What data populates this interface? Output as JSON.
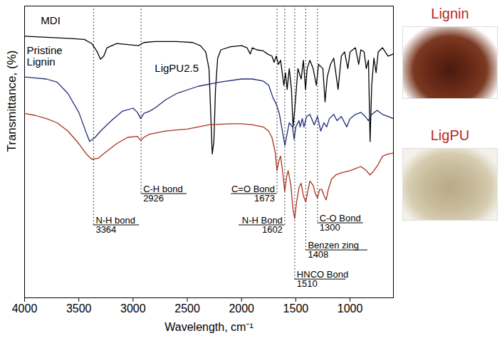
{
  "chart_data": {
    "type": "line",
    "y_label": "Transmittance, (%)",
    "x_label": "Wavelength, cm⁻¹",
    "xlim": [
      4000,
      600
    ],
    "xticks": [
      4000,
      3500,
      3000,
      2500,
      2000,
      1500,
      1000
    ],
    "ylim": [
      -30,
      110
    ],
    "tick_labels": "x",
    "grid": false,
    "series": [
      {
        "name": "MDI",
        "color": "#000000",
        "x": [
          4000,
          3800,
          3600,
          3450,
          3380,
          3330,
          3300,
          3270,
          3240,
          3150,
          3050,
          2950,
          2900,
          2800,
          2600,
          2450,
          2380,
          2330,
          2300,
          2285,
          2270,
          2255,
          2240,
          2220,
          2190,
          2100,
          2000,
          1950,
          1920,
          1900,
          1860,
          1800,
          1760,
          1720,
          1700,
          1680,
          1660,
          1640,
          1610,
          1595,
          1580,
          1560,
          1540,
          1525,
          1510,
          1480,
          1450,
          1430,
          1410,
          1395,
          1370,
          1340,
          1310,
          1290,
          1250,
          1230,
          1210,
          1180,
          1150,
          1110,
          1080,
          1050,
          1020,
          1000,
          950,
          920,
          900,
          870,
          850,
          830,
          815,
          800,
          780,
          760,
          740,
          700,
          650,
          600
        ],
        "values": [
          95.5,
          95,
          94.5,
          94,
          92,
          88,
          84.5,
          86,
          90,
          92,
          91.5,
          91,
          92.5,
          93,
          93,
          92.5,
          91,
          88,
          80,
          60,
          39,
          45,
          70,
          85,
          89,
          90.5,
          91,
          90,
          87,
          90,
          89,
          88.5,
          87,
          86,
          83,
          86,
          82,
          84,
          72,
          78,
          70,
          80,
          70,
          52,
          60,
          80,
          75,
          84,
          70,
          80,
          84,
          80,
          72,
          82,
          80,
          64,
          76,
          82,
          85,
          70,
          86,
          88,
          80,
          88,
          90,
          82,
          89,
          88,
          80,
          84,
          45,
          72,
          85,
          78,
          88,
          90,
          86,
          87
        ]
      },
      {
        "name": "Pristine Lignin",
        "color": "#1f2a7a",
        "x": [
          4000,
          3900,
          3800,
          3700,
          3600,
          3500,
          3430,
          3400,
          3350,
          3300,
          3200,
          3100,
          3000,
          2960,
          2930,
          2900,
          2850,
          2800,
          2700,
          2600,
          2400,
          2200,
          2000,
          1900,
          1800,
          1750,
          1710,
          1680,
          1650,
          1620,
          1600,
          1590,
          1560,
          1530,
          1515,
          1500,
          1470,
          1460,
          1440,
          1425,
          1400,
          1370,
          1330,
          1300,
          1270,
          1240,
          1215,
          1190,
          1150,
          1120,
          1080,
          1030,
          1000,
          950,
          900,
          860,
          830,
          800,
          750,
          700,
          650,
          600
        ],
        "values": [
          76,
          75.5,
          75,
          73.5,
          68,
          59,
          49,
          45,
          47,
          50,
          55,
          59.5,
          61,
          59,
          56,
          58.5,
          59.5,
          61,
          65,
          68,
          71.5,
          73.5,
          75,
          75,
          74,
          72,
          66,
          63,
          58,
          49,
          43,
          46,
          54,
          52,
          46,
          52,
          55,
          52,
          56,
          52,
          57,
          58,
          53,
          57,
          50,
          54,
          52,
          56,
          58,
          55,
          57,
          52,
          56,
          58,
          59,
          57,
          55,
          58,
          60,
          58,
          57,
          56
        ]
      },
      {
        "name": "LigPU2.5",
        "color": "#a8321f",
        "x": [
          4000,
          3900,
          3800,
          3700,
          3600,
          3500,
          3430,
          3380,
          3320,
          3250,
          3150,
          3050,
          2960,
          2930,
          2900,
          2850,
          2700,
          2500,
          2300,
          2100,
          2000,
          1900,
          1800,
          1750,
          1720,
          1690,
          1673,
          1655,
          1640,
          1620,
          1602,
          1585,
          1570,
          1545,
          1525,
          1510,
          1495,
          1470,
          1450,
          1430,
          1408,
          1390,
          1370,
          1340,
          1320,
          1300,
          1280,
          1260,
          1240,
          1220,
          1200,
          1170,
          1130,
          1080,
          1040,
          1000,
          950,
          900,
          850,
          815,
          780,
          740,
          700,
          650,
          600
        ],
        "values": [
          58.5,
          57.5,
          56,
          54,
          50,
          44,
          39,
          36.5,
          37,
          40,
          44,
          47,
          47.5,
          45.5,
          47,
          48.5,
          50,
          51,
          53,
          53.5,
          53.5,
          53,
          52,
          50,
          47,
          40,
          31,
          36,
          38,
          30,
          21,
          28,
          31,
          24,
          12,
          8,
          15,
          23,
          25,
          19,
          16,
          21,
          26,
          24,
          20,
          18,
          22,
          22,
          19,
          17,
          22,
          27,
          29,
          30,
          30.5,
          31,
          32,
          33,
          31,
          29,
          31,
          34,
          38,
          39,
          39.5
        ]
      }
    ],
    "annotations": [
      {
        "text": "N-H bond",
        "x": 3364
      },
      {
        "text": "C-H bond",
        "x": 2926
      },
      {
        "text": "C=O Bond",
        "x": 1673
      },
      {
        "text": "N-H Bond",
        "x": 1602
      },
      {
        "text": "HNCO Bond",
        "x": 1510
      },
      {
        "text": "Benzen zing",
        "x": 1408
      },
      {
        "text": "C-O Bond",
        "x": 1300
      }
    ],
    "panels": [
      "Lignin",
      "LigPU"
    ]
  }
}
